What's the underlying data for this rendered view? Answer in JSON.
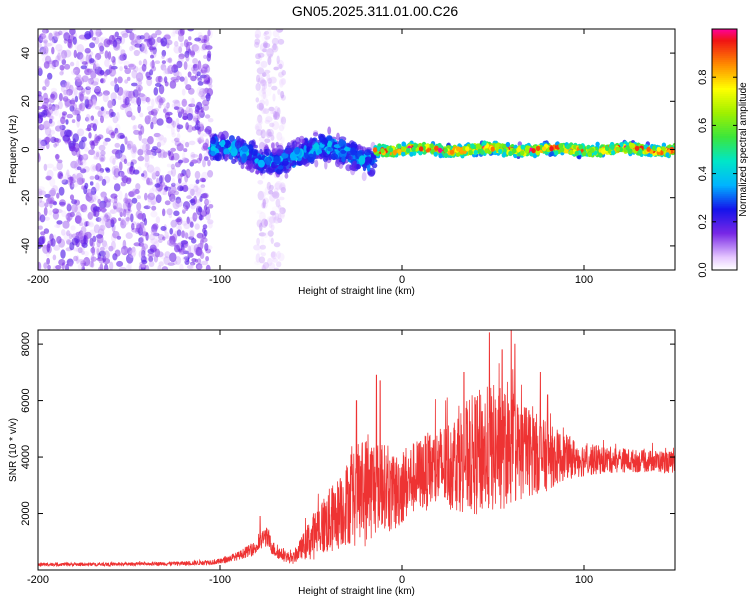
{
  "title": "GN05.2025.311.01.00.C26",
  "chart_data": [
    {
      "type": "heatmap",
      "xlabel": "Height of straight line (km)",
      "ylabel": "Frequency (Hz)",
      "xlim": [
        -200,
        150
      ],
      "ylim": [
        -50,
        50
      ],
      "xticks": [
        -200,
        -100,
        0,
        100
      ],
      "yticks": [
        -40,
        -20,
        0,
        20,
        40
      ],
      "colorbar": {
        "label": "Normalized spectral amplitude",
        "range": [
          0,
          1
        ],
        "ticks": [
          0.0,
          0.2,
          0.4,
          0.6,
          0.8
        ],
        "tick_labels": [
          "0.0",
          "0.2",
          "0.4",
          "0.6",
          "0.8"
        ]
      },
      "description_points": [
        {
          "x_range": [
            -200,
            -105
          ],
          "freq_spread": 50,
          "amplitude": 0.1,
          "note": "scattered low-amplitude speckle"
        },
        {
          "x_range": [
            -80,
            -65
          ],
          "freq_spread": 50,
          "amplitude": 0.05,
          "note": "faint vertical streak"
        },
        {
          "x_range": [
            -105,
            -15
          ],
          "freq_center": 0,
          "freq_spread": 8,
          "amplitude": 0.25
        },
        {
          "x_range": [
            -15,
            150
          ],
          "freq_center": 0,
          "freq_spread": 3,
          "amplitude": 0.6,
          "peak_amplitude": 0.95
        }
      ]
    },
    {
      "type": "line",
      "xlabel": "Height of straight line (km)",
      "ylabel": "SNR (10 * v/v)",
      "xlim": [
        -200,
        150
      ],
      "ylim": [
        0,
        8500
      ],
      "xticks": [
        -200,
        -100,
        0,
        100
      ],
      "yticks": [
        2000,
        4000,
        6000,
        8000
      ],
      "color": "#ee3333",
      "series": [
        {
          "x": [
            -200,
            -180,
            -160,
            -140,
            -120,
            -100,
            -90,
            -80,
            -75,
            -70,
            -65,
            -60,
            -55,
            -50,
            -45,
            -40,
            -35,
            -30,
            -25,
            -20,
            -15,
            -10,
            -5,
            0,
            5,
            10,
            15,
            20,
            25,
            30,
            35,
            40,
            45,
            50,
            55,
            60,
            65,
            70,
            75,
            80,
            85,
            90,
            100,
            110,
            120,
            130,
            140,
            150
          ],
          "mean": [
            200,
            200,
            200,
            220,
            230,
            300,
            500,
            800,
            1200,
            700,
            500,
            400,
            800,
            1100,
            1500,
            1700,
            2000,
            2400,
            2600,
            2800,
            3000,
            3000,
            2600,
            3000,
            3200,
            3400,
            3500,
            3600,
            3700,
            3900,
            4000,
            4100,
            4200,
            4300,
            4300,
            4200,
            4200,
            4200,
            4100,
            4000,
            4000,
            4000,
            3900,
            3900,
            3900,
            3850,
            3850,
            3800
          ],
          "noise": [
            60,
            60,
            60,
            60,
            80,
            100,
            150,
            250,
            400,
            250,
            200,
            200,
            400,
            800,
            1000,
            1200,
            1300,
            1500,
            1800,
            2000,
            1800,
            1500,
            1400,
            1400,
            1300,
            1300,
            1400,
            1500,
            1600,
            1800,
            2000,
            2200,
            2300,
            2300,
            2200,
            2000,
            1800,
            1600,
            1400,
            1200,
            1000,
            800,
            600,
            500,
            450,
            400,
            400,
            400
          ],
          "spikes": [
            [
              -78,
              1900
            ],
            [
              -25,
              6000
            ],
            [
              -14,
              6900
            ],
            [
              -12,
              6700
            ],
            [
              34,
              7000
            ],
            [
              48,
              8400
            ],
            [
              55,
              7800
            ],
            [
              60,
              8500
            ],
            [
              62,
              8000
            ],
            [
              76,
              7000
            ],
            [
              80,
              6200
            ]
          ]
        }
      ]
    }
  ]
}
